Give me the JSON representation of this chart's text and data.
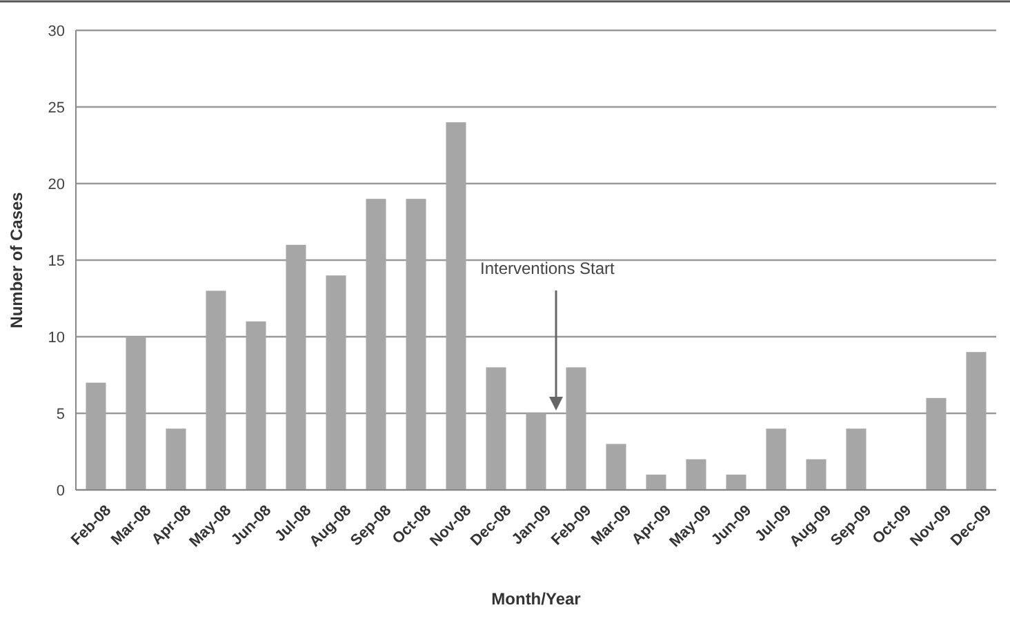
{
  "chart_data": {
    "type": "bar",
    "xlabel": "Month/Year",
    "ylabel": "Number of Cases",
    "categories": [
      "Feb-08",
      "Mar-08",
      "Apr-08",
      "May-08",
      "Jun-08",
      "Jul-08",
      "Aug-08",
      "Sep-08",
      "Oct-08",
      "Nov-08",
      "Dec-08",
      "Jan-09",
      "Feb-09",
      "Mar-09",
      "Apr-09",
      "May-09",
      "Jun-09",
      "Jul-09",
      "Aug-09",
      "Sep-09",
      "Oct-09",
      "Nov-09",
      "Dec-09"
    ],
    "values": [
      7,
      10,
      4,
      13,
      11,
      16,
      14,
      19,
      19,
      24,
      8,
      5,
      8,
      3,
      1,
      2,
      1,
      4,
      2,
      4,
      0,
      6,
      9
    ],
    "color": "#a6a6a6",
    "ylim": [
      0,
      30
    ],
    "yticks": [
      0,
      5,
      10,
      15,
      20,
      25,
      30
    ],
    "grid": "y",
    "annotations": [
      "Interventions Start"
    ]
  }
}
